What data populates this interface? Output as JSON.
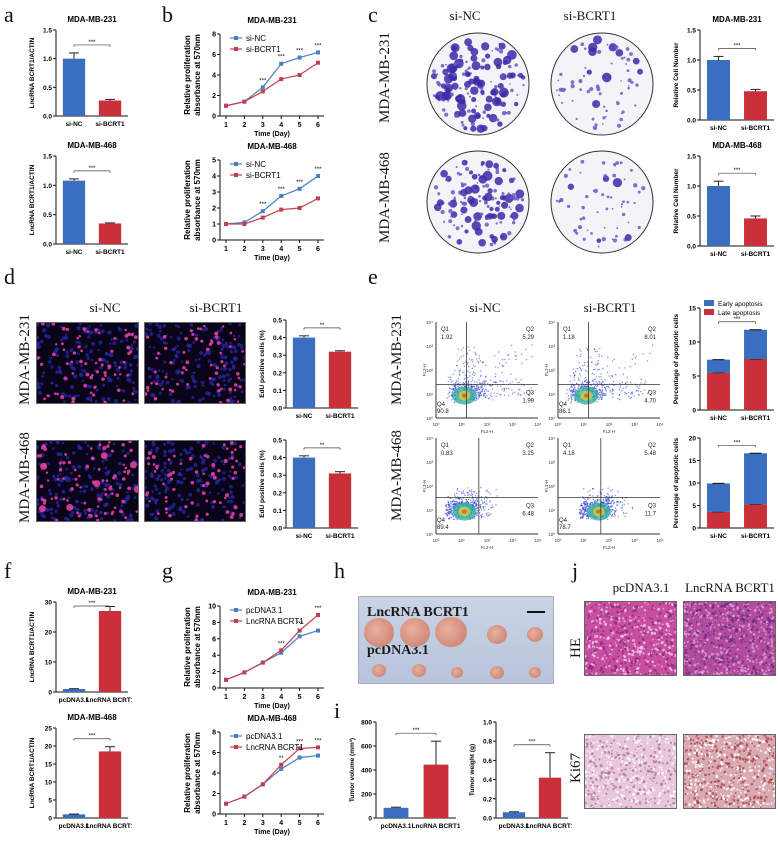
{
  "colors": {
    "blue": "#3a6fc0",
    "red": "#c9303a",
    "blue_line": "#4a7fc0",
    "red_line": "#c04050"
  },
  "panels": {
    "a": {
      "label": "a"
    },
    "b": {
      "label": "b"
    },
    "c": {
      "label": "c"
    },
    "d": {
      "label": "d"
    },
    "e": {
      "label": "e"
    },
    "f": {
      "label": "f"
    },
    "g": {
      "label": "g"
    },
    "h": {
      "label": "h"
    },
    "i": {
      "label": "i"
    },
    "j": {
      "label": "j"
    }
  },
  "common": {
    "si_nc": "si-NC",
    "si_bcrt1": "si-BCRT1",
    "mda231": "MDA-MB-231",
    "mda468": "MDA-MB-468",
    "pcdna": "pcDNA3.1",
    "lnc": "LncRNA BCRT1",
    "sig3": "***",
    "sig2": "**"
  },
  "panel_c": {
    "ylabel": "Relative Cell Number"
  },
  "panel_d": {
    "ylabel": "EdU positive cells (%)"
  },
  "panel_e": {
    "ylabel": "Percentage of apoptotic cells",
    "legend_early": "Early apoptosis",
    "legend_late": "Late apoptosis",
    "flow": {
      "xaxis": "FL2-H",
      "yaxis": "FL3-H",
      "plots": [
        {
          "q1": "1.92",
          "q2": "5.29",
          "q3": "1.99",
          "q4": "90.8"
        },
        {
          "q1": "1.18",
          "q2": "8.01",
          "q3": "4.70",
          "q4": "86.1"
        },
        {
          "q1": "0.83",
          "q2": "3.25",
          "q3": "6.48",
          "q4": "89.4"
        },
        {
          "q1": "4.18",
          "q2": "5.48",
          "q3": "11.7",
          "q4": "78.7"
        }
      ]
    }
  },
  "panel_j": {
    "he": "HE",
    "ki67": "Ki67"
  },
  "panel_h": {
    "scale_bar": "scale-bar"
  },
  "chart_data": [
    {
      "id": "a1",
      "type": "bar",
      "title": "MDA-MB-231",
      "ylabel": "LncRNA BCRT1/ACTIN",
      "categories": [
        "si-NC",
        "si-BCRT1"
      ],
      "values": [
        1.0,
        0.27
      ],
      "errors": [
        0.1,
        0.02
      ],
      "ylim": [
        0,
        1.5
      ],
      "yticks": [
        0.0,
        0.5,
        1.0,
        1.5
      ],
      "significance": "***"
    },
    {
      "id": "a2",
      "type": "bar",
      "title": "MDA-MB-468",
      "ylabel": "LncRNA BCRT1/ACTIN",
      "categories": [
        "si-NC",
        "si-BCRT1"
      ],
      "values": [
        1.08,
        0.35
      ],
      "errors": [
        0.03,
        0.01
      ],
      "ylim": [
        0,
        1.5
      ],
      "yticks": [
        0.0,
        0.5,
        1.0,
        1.5
      ],
      "significance": "***"
    },
    {
      "id": "b1",
      "type": "line",
      "title": "MDA-MB-231",
      "xlabel": "Time (Day)",
      "ylabel": "Relative proliferation absorbance at 570nm",
      "x": [
        1,
        2,
        3,
        4,
        5,
        6
      ],
      "ylim": [
        0,
        8
      ],
      "yticks": [
        0,
        2,
        4,
        6,
        8
      ],
      "series": [
        {
          "name": "si-NC",
          "values": [
            1.0,
            1.4,
            2.8,
            5.1,
            5.7,
            6.2
          ]
        },
        {
          "name": "si-BCRT1",
          "values": [
            1.0,
            1.4,
            2.4,
            3.6,
            4.0,
            5.2
          ]
        }
      ],
      "annotations": [
        "",
        "",
        "***",
        "***",
        "***",
        "***"
      ]
    },
    {
      "id": "b2",
      "type": "line",
      "title": "MDA-MB-468",
      "xlabel": "Time (Day)",
      "ylabel": "Relative proliferation absorbance at 570nm",
      "x": [
        1,
        2,
        3,
        4,
        5,
        6
      ],
      "ylim": [
        0,
        5
      ],
      "yticks": [
        0,
        1,
        2,
        3,
        4,
        5
      ],
      "series": [
        {
          "name": "si-NC",
          "values": [
            1.0,
            1.1,
            1.8,
            2.75,
            3.2,
            4.0
          ]
        },
        {
          "name": "si-BCRT1",
          "values": [
            1.0,
            1.0,
            1.4,
            1.9,
            2.0,
            2.6
          ]
        }
      ],
      "annotations": [
        "",
        "",
        "***",
        "***",
        "***",
        "***"
      ]
    },
    {
      "id": "c1",
      "type": "bar",
      "title": "MDA-MB-231",
      "ylabel": "Relative Cell Number",
      "categories": [
        "si-NC",
        "si-BCRT1"
      ],
      "values": [
        1.0,
        0.48
      ],
      "errors": [
        0.06,
        0.03
      ],
      "ylim": [
        0,
        1.5
      ],
      "yticks": [
        0.0,
        0.5,
        1.0,
        1.5
      ],
      "significance": "***"
    },
    {
      "id": "c2",
      "type": "bar",
      "title": "MDA-MB-468",
      "ylabel": "Relative Cell Number",
      "categories": [
        "si-NC",
        "si-BCRT1"
      ],
      "values": [
        1.0,
        0.46
      ],
      "errors": [
        0.08,
        0.04
      ],
      "ylim": [
        0,
        1.5
      ],
      "yticks": [
        0.0,
        0.5,
        1.0,
        1.5
      ],
      "significance": "***"
    },
    {
      "id": "d1",
      "type": "bar",
      "title": "",
      "ylabel": "EdU positive cells (%)",
      "categories": [
        "si-NC",
        "si-BCRT1"
      ],
      "values": [
        0.4,
        0.32
      ],
      "errors": [
        0.01,
        0.005
      ],
      "ylim": [
        0,
        0.5
      ],
      "yticks": [
        0.0,
        0.1,
        0.2,
        0.3,
        0.4,
        0.5
      ],
      "significance": "**"
    },
    {
      "id": "d2",
      "type": "bar",
      "title": "",
      "ylabel": "EdU positive cells (%)",
      "categories": [
        "si-NC",
        "si-BCRT1"
      ],
      "values": [
        0.4,
        0.31
      ],
      "errors": [
        0.01,
        0.01
      ],
      "ylim": [
        0,
        0.5
      ],
      "yticks": [
        0.0,
        0.1,
        0.2,
        0.3,
        0.4,
        0.5
      ],
      "significance": "**"
    },
    {
      "id": "e1",
      "type": "bar",
      "stacked": true,
      "title": "",
      "ylabel": "Percentage of apoptotic cells",
      "categories": [
        "si-NC",
        "si-BCRT1"
      ],
      "series": [
        {
          "name": "Late apoptosis",
          "values": [
            5.5,
            7.5
          ]
        },
        {
          "name": "Early apoptosis",
          "values": [
            1.9,
            4.3
          ]
        }
      ],
      "totals": [
        7.4,
        11.8
      ],
      "ylim": [
        0,
        15
      ],
      "yticks": [
        0,
        5,
        10,
        15
      ],
      "legend": [
        "Early apoptosis",
        "Late apoptosis"
      ],
      "significance": "***"
    },
    {
      "id": "e2",
      "type": "bar",
      "stacked": true,
      "title": "",
      "ylabel": "Percentage of apoptotic cells",
      "categories": [
        "si-NC",
        "si-BCRT1"
      ],
      "series": [
        {
          "name": "Late apoptosis",
          "values": [
            3.6,
            5.3
          ]
        },
        {
          "name": "Early apoptosis",
          "values": [
            6.3,
            11.3
          ]
        }
      ],
      "totals": [
        9.9,
        16.6
      ],
      "ylim": [
        0,
        20
      ],
      "yticks": [
        0,
        5,
        10,
        15,
        20
      ],
      "significance": "***"
    },
    {
      "id": "f1",
      "type": "bar",
      "title": "MDA-MB-231",
      "ylabel": "LncRNA BCRT1/ACTIN",
      "categories": [
        "pcDNA3.1",
        "LncRNA BCRT1"
      ],
      "values": [
        1.0,
        27.0
      ],
      "errors": [
        0.1,
        1.5
      ],
      "ylim": [
        0,
        30
      ],
      "yticks": [
        0,
        10,
        20,
        30
      ],
      "significance": "***"
    },
    {
      "id": "f2",
      "type": "bar",
      "title": "MDA-MB-468",
      "ylabel": "LncRNA BCRT1/ACTIN",
      "categories": [
        "pcDNA3.1",
        "LncRNA BCRT1"
      ],
      "values": [
        1.0,
        18.5
      ],
      "errors": [
        0.1,
        1.3
      ],
      "ylim": [
        0,
        25
      ],
      "yticks": [
        0,
        5,
        10,
        15,
        20,
        25
      ],
      "significance": "***"
    },
    {
      "id": "g1",
      "type": "line",
      "title": "MDA-MB-231",
      "xlabel": "Time (Day)",
      "ylabel": "Relative proliferation absorbance at 570nm",
      "x": [
        1,
        2,
        3,
        4,
        5,
        6
      ],
      "ylim": [
        0,
        10
      ],
      "yticks": [
        0,
        2,
        4,
        6,
        8,
        10
      ],
      "series": [
        {
          "name": "pcDNA3.1",
          "values": [
            1.0,
            1.9,
            3.1,
            4.3,
            6.3,
            7.0
          ]
        },
        {
          "name": "LncRNA BCRT1",
          "values": [
            1.0,
            1.9,
            3.1,
            4.6,
            7.0,
            8.9
          ]
        }
      ],
      "annotations": [
        "",
        "",
        "",
        "***",
        "***",
        "***"
      ]
    },
    {
      "id": "g2",
      "type": "line",
      "title": "MDA-MB-468",
      "xlabel": "Time (Day)",
      "ylabel": "Relative proliferation absorbance at 570nm",
      "x": [
        1,
        2,
        3,
        4,
        5,
        6
      ],
      "ylim": [
        0,
        8
      ],
      "yticks": [
        0,
        2,
        4,
        6,
        8
      ],
      "series": [
        {
          "name": "pcDNA3.1",
          "values": [
            1.0,
            1.7,
            2.9,
            4.4,
            5.5,
            5.7
          ]
        },
        {
          "name": "LncRNA BCRT1",
          "values": [
            1.0,
            1.7,
            2.9,
            4.8,
            6.4,
            6.5
          ]
        }
      ],
      "annotations": [
        "",
        "",
        "",
        "**",
        "***",
        "***"
      ]
    },
    {
      "id": "i1",
      "type": "bar",
      "title": "",
      "ylabel": "Tumor volume (mm³)",
      "categories": [
        "pcDNA3.1",
        "LncRNA BCRT1"
      ],
      "values": [
        85,
        445
      ],
      "errors": [
        5,
        195
      ],
      "ylim": [
        0,
        800
      ],
      "yticks": [
        0,
        200,
        400,
        600,
        800
      ],
      "significance": "***"
    },
    {
      "id": "i2",
      "type": "bar",
      "title": "",
      "ylabel": "Tumor weight (g)",
      "categories": [
        "pcDNA3.1",
        "LncRNA BCRT1"
      ],
      "values": [
        0.06,
        0.42
      ],
      "errors": [
        0.005,
        0.26
      ],
      "ylim": [
        0,
        1.0
      ],
      "yticks": [
        0.0,
        0.2,
        0.4,
        0.6,
        0.8,
        1.0
      ],
      "significance": "***"
    }
  ]
}
